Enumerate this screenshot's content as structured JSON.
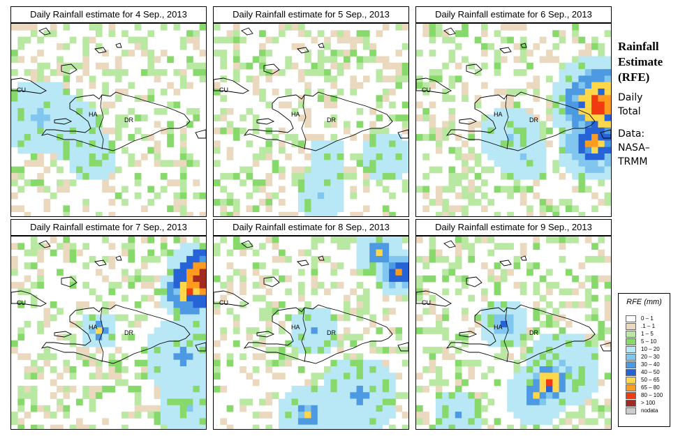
{
  "panels": [
    {
      "title": "Daily Rainfall estimate for  4 Sep., 2013",
      "grid_seed": 4
    },
    {
      "title": "Daily Rainfall estimate for  5 Sep., 2013",
      "grid_seed": 5
    },
    {
      "title": "Daily Rainfall estimate for  6 Sep., 2013",
      "grid_seed": 6
    },
    {
      "title": "Daily Rainfall estimate for  7 Sep., 2013",
      "grid_seed": 7
    },
    {
      "title": "Daily Rainfall estimate for  8 Sep., 2013",
      "grid_seed": 8
    },
    {
      "title": "Daily Rainfall estimate for  9 Sep., 2013",
      "grid_seed": 9
    }
  ],
  "map_labels": {
    "cuba": "CU",
    "haiti": "HA",
    "dominican_republic": "DR"
  },
  "side_info": {
    "heading_line1": "Rainfall",
    "heading_line2": "Estimate",
    "heading_line3": "(RFE)",
    "daily_line1": "Daily",
    "daily_line2": "Total",
    "data_line1": "Data:",
    "data_line2": "NASA–",
    "data_line3": "TRMM"
  },
  "legend": {
    "title": "RFE (mm)",
    "items": [
      {
        "label": "0 – 1",
        "color": "#ffffff"
      },
      {
        "label": ".1 – 1",
        "color": "#ead9be"
      },
      {
        "label": "1 – 5",
        "color": "#b9e8a3"
      },
      {
        "label": "5 – 10",
        "color": "#88d96c"
      },
      {
        "label": "10 – 20",
        "color": "#b8e7f6"
      },
      {
        "label": "20 – 30",
        "color": "#80c6ee"
      },
      {
        "label": "30 – 40",
        "color": "#4d9ae3"
      },
      {
        "label": "40 – 50",
        "color": "#2563d6"
      },
      {
        "label": "50 – 65",
        "color": "#ffd74a"
      },
      {
        "label": "65 – 80",
        "color": "#ff9b1f"
      },
      {
        "label": "80 – 100",
        "color": "#f23a12"
      },
      {
        "label": "> 100",
        "color": "#a32a20"
      },
      {
        "label": "nodata",
        "color": "#cccccc"
      }
    ]
  }
}
